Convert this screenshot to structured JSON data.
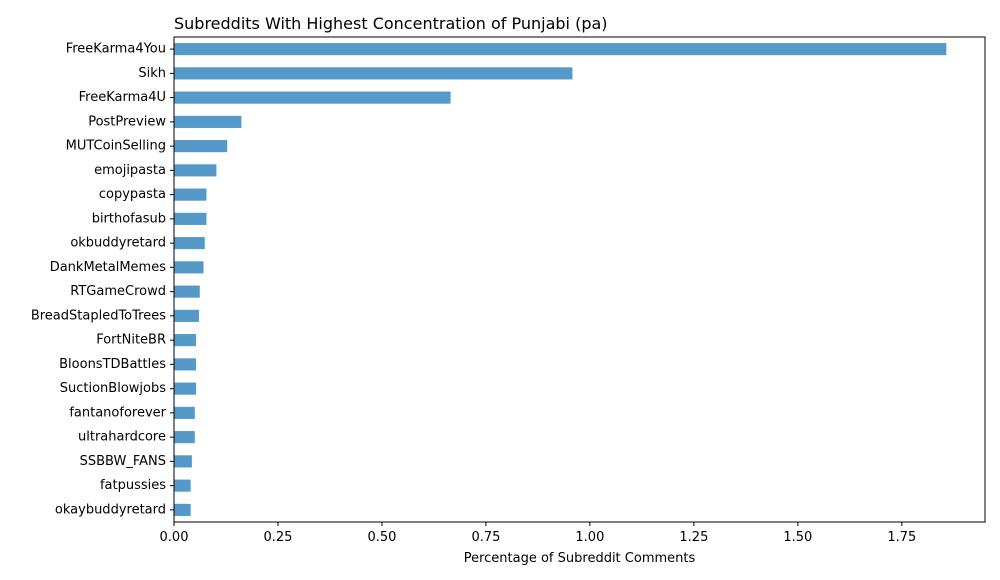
{
  "chart_data": {
    "type": "bar",
    "orientation": "horizontal",
    "title": "Subreddits With Highest Concentration of Punjabi (pa)",
    "xlabel": "Percentage of Subreddit Comments",
    "ylabel": "",
    "xlim": [
      0,
      1.95
    ],
    "xticks": [
      0.0,
      0.25,
      0.5,
      0.75,
      1.0,
      1.25,
      1.5,
      1.75
    ],
    "xtick_labels": [
      "0.00",
      "0.25",
      "0.50",
      "0.75",
      "1.00",
      "1.25",
      "1.50",
      "1.75"
    ],
    "categories": [
      "FreeKarma4You",
      "Sikh",
      "FreeKarma4U",
      "PostPreview",
      "MUTCoinSelling",
      "emojipasta",
      "copypasta",
      "birthofasub",
      "okbuddyretard",
      "DankMetalMemes",
      "RTGameCrowd",
      "BreadStapledToTrees",
      "FortNiteBR",
      "BloonsTDBattles",
      "SuctionBlowjobs",
      "fantanoforever",
      "ultrahardcore",
      "SSBBW_FANS",
      "fatpussies",
      "okaybuddyretard"
    ],
    "values": [
      1.857,
      0.958,
      0.665,
      0.162,
      0.128,
      0.102,
      0.078,
      0.078,
      0.074,
      0.071,
      0.062,
      0.06,
      0.053,
      0.053,
      0.053,
      0.05,
      0.05,
      0.043,
      0.04,
      0.04
    ],
    "bar_color": "#5499c7",
    "grid": false,
    "legend": "none"
  }
}
